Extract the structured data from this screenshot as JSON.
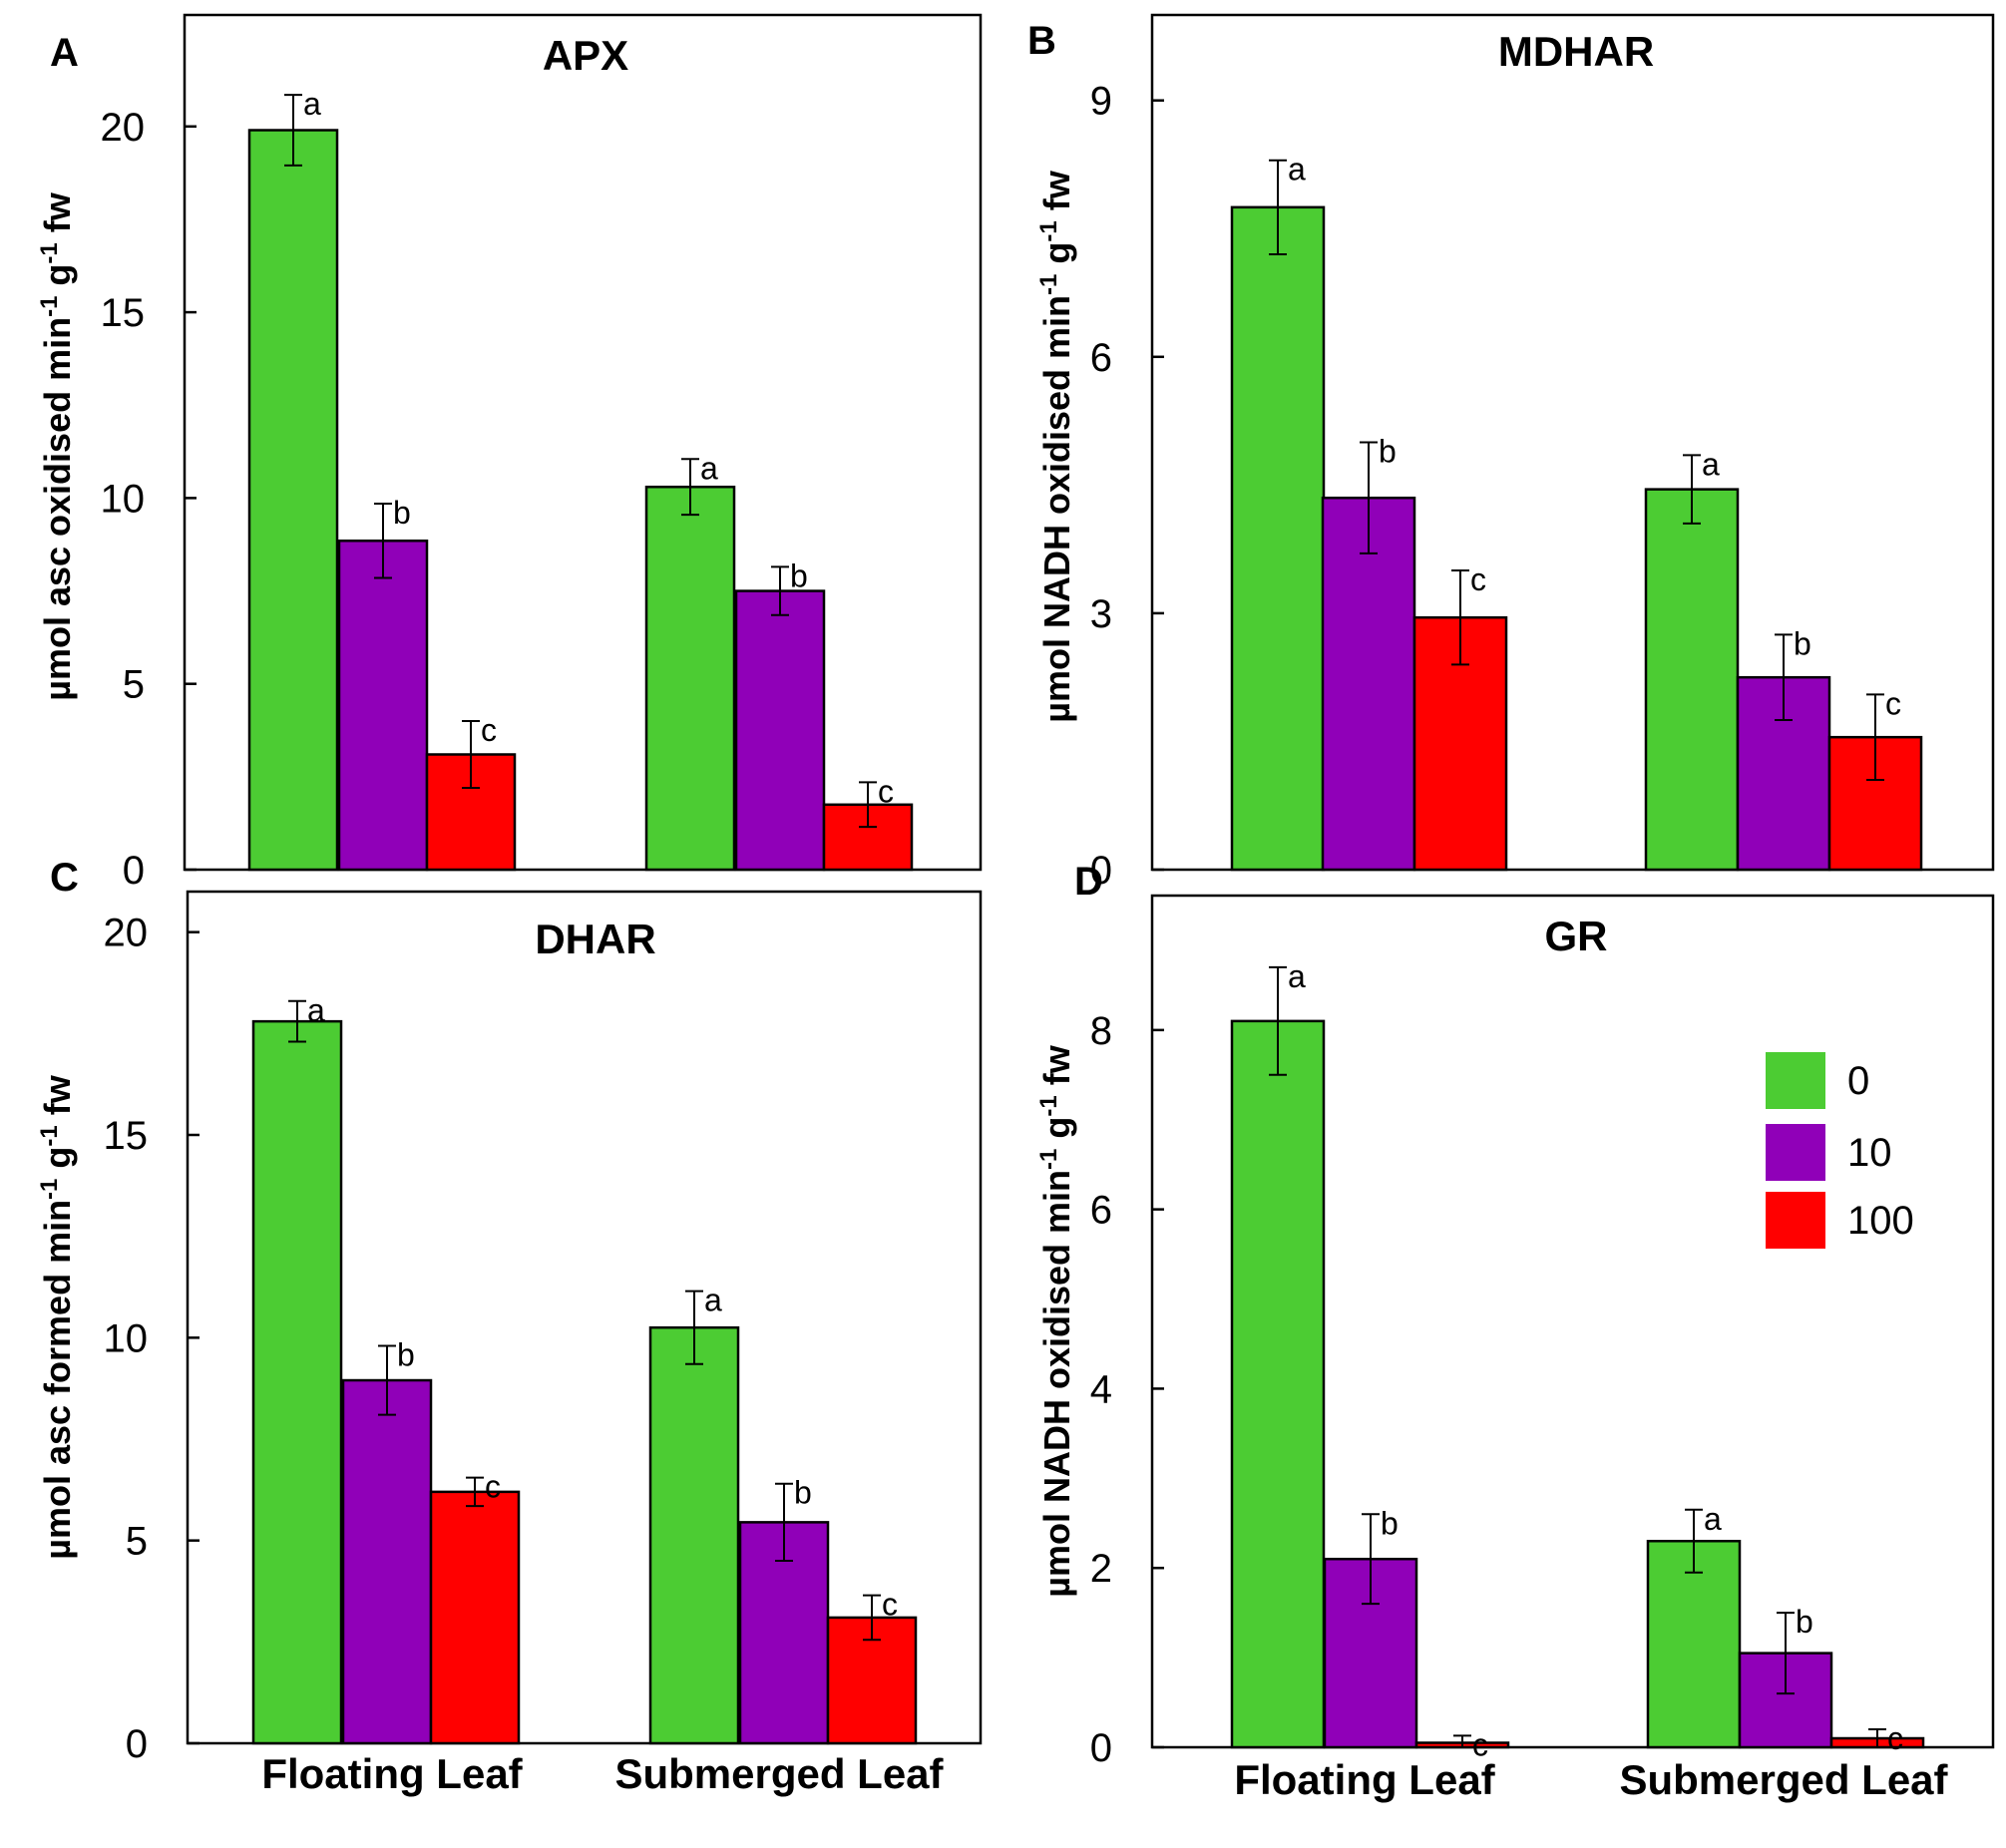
{
  "legend": {
    "entries": [
      {
        "label": "0",
        "color": "#4ccc33"
      },
      {
        "label": "10",
        "color": "#9000b8"
      },
      {
        "label": "100",
        "color": "#ff0000"
      }
    ]
  },
  "chart_data": [
    {
      "panel": "A",
      "type": "bar",
      "title": "APX",
      "ylabel": "µmol asc oxidised min-1 g-1 fw",
      "ylabel_parts": [
        "µmol asc oxidised min",
        "-1",
        " g",
        "-1",
        " fw"
      ],
      "ylim": [
        0,
        23
      ],
      "yticks": [
        0,
        5,
        10,
        15,
        20
      ],
      "categories": [
        "Floating Leaf",
        "Submerged Leaf"
      ],
      "series": [
        {
          "name": "0",
          "values": [
            19.9,
            10.3
          ],
          "errors": [
            0.95,
            0.75
          ],
          "letters": [
            "a",
            "a"
          ]
        },
        {
          "name": "10",
          "values": [
            8.85,
            7.5
          ],
          "errors": [
            1.0,
            0.65
          ],
          "letters": [
            "b",
            "b"
          ]
        },
        {
          "name": "100",
          "values": [
            3.1,
            1.75
          ],
          "errors": [
            0.9,
            0.6
          ],
          "letters": [
            "c",
            "c"
          ]
        }
      ]
    },
    {
      "panel": "B",
      "type": "bar",
      "title": "MDHAR",
      "ylabel": "µmol NADH oxidised min-1 g-1 fw",
      "ylabel_parts": [
        "µmol NADH oxidised min",
        "-1",
        " g",
        "-1",
        " fw"
      ],
      "ylim": [
        0,
        10
      ],
      "yticks": [
        0,
        3,
        6,
        9
      ],
      "categories": [
        "Floating Leaf",
        "Submerged Leaf"
      ],
      "series": [
        {
          "name": "0",
          "values": [
            7.75,
            4.45
          ],
          "errors": [
            0.55,
            0.4
          ],
          "letters": [
            "a",
            "a"
          ]
        },
        {
          "name": "10",
          "values": [
            4.35,
            2.25
          ],
          "errors": [
            0.65,
            0.5
          ],
          "letters": [
            "b",
            "b"
          ]
        },
        {
          "name": "100",
          "values": [
            2.95,
            1.55
          ],
          "errors": [
            0.55,
            0.5
          ],
          "letters": [
            "c",
            "c"
          ]
        }
      ]
    },
    {
      "panel": "C",
      "type": "bar",
      "title": "DHAR",
      "ylabel": "µmol asc formed min-1 g-1 fw",
      "ylabel_parts": [
        "µmol asc formed min",
        "-1",
        " g",
        "-1",
        " fw"
      ],
      "ylim": [
        0,
        21
      ],
      "yticks": [
        0,
        5,
        10,
        15,
        20
      ],
      "categories": [
        "Floating Leaf",
        "Submerged Leaf"
      ],
      "series": [
        {
          "name": "0",
          "values": [
            17.8,
            10.25
          ],
          "errors": [
            0.5,
            0.9
          ],
          "letters": [
            "a",
            "a"
          ]
        },
        {
          "name": "10",
          "values": [
            8.95,
            5.45
          ],
          "errors": [
            0.85,
            0.95
          ],
          "letters": [
            "b",
            "b"
          ]
        },
        {
          "name": "100",
          "values": [
            6.2,
            3.1
          ],
          "errors": [
            0.35,
            0.55
          ],
          "letters": [
            "c",
            "c"
          ]
        }
      ]
    },
    {
      "panel": "D",
      "type": "bar",
      "title": "GR",
      "ylabel": "µmol NADH oxidised min-1 g-1 fw",
      "ylabel_parts": [
        "µmol NADH oxidised min",
        "-1",
        " g",
        "-1",
        " fw"
      ],
      "ylim": [
        0,
        9.5
      ],
      "yticks": [
        0,
        2,
        4,
        6,
        8
      ],
      "categories": [
        "Floating Leaf",
        "Submerged Leaf"
      ],
      "series": [
        {
          "name": "0",
          "values": [
            8.1,
            2.3
          ],
          "errors": [
            0.6,
            0.35
          ],
          "letters": [
            "a",
            "a"
          ]
        },
        {
          "name": "10",
          "values": [
            2.1,
            1.05
          ],
          "errors": [
            0.5,
            0.45
          ],
          "letters": [
            "b",
            "b"
          ]
        },
        {
          "name": "100",
          "values": [
            0.05,
            0.1
          ],
          "errors": [
            0.08,
            0.1
          ],
          "letters": [
            "c",
            "c"
          ]
        }
      ]
    }
  ]
}
